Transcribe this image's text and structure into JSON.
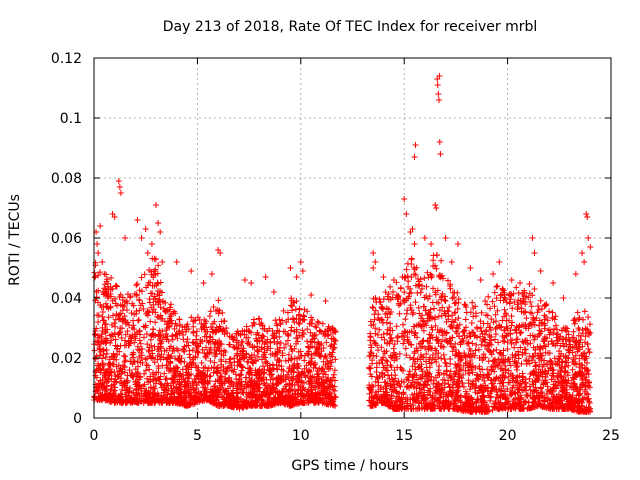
{
  "chart_data": {
    "type": "scatter",
    "title": "Day 213 of 2018, Rate Of TEC Index for receiver mrbl",
    "xlabel": "GPS time / hours",
    "ylabel": "ROTI / TECUs",
    "xlim": [
      0,
      25
    ],
    "ylim": [
      0,
      0.12
    ],
    "x_ticks": [
      0,
      5,
      10,
      15,
      20,
      25
    ],
    "x_tick_labels": [
      "0",
      "5",
      "10",
      "15",
      "20",
      "25"
    ],
    "y_ticks": [
      0,
      0.02,
      0.04,
      0.06,
      0.08,
      0.1,
      0.12
    ],
    "y_tick_labels": [
      "0",
      "0.02",
      "0.04",
      "0.06",
      "0.08",
      "0.1",
      "0.12"
    ],
    "grid": true,
    "marker": "+",
    "color": "#ff0000",
    "gap_hours": [
      11.7,
      13.3
    ],
    "series": [
      {
        "name": "ROTI",
        "points": [
          [
            0.1,
            0.062
          ],
          [
            0.15,
            0.058
          ],
          [
            0.2,
            0.055
          ],
          [
            0.3,
            0.064
          ],
          [
            0.4,
            0.052
          ],
          [
            0.5,
            0.048
          ],
          [
            0.9,
            0.068
          ],
          [
            1.0,
            0.067
          ],
          [
            1.2,
            0.079
          ],
          [
            1.25,
            0.077
          ],
          [
            1.3,
            0.075
          ],
          [
            1.5,
            0.06
          ],
          [
            2.1,
            0.066
          ],
          [
            2.3,
            0.06
          ],
          [
            2.5,
            0.063
          ],
          [
            2.6,
            0.055
          ],
          [
            2.8,
            0.058
          ],
          [
            3.0,
            0.071
          ],
          [
            3.1,
            0.065
          ],
          [
            3.2,
            0.062
          ],
          [
            3.3,
            0.052
          ],
          [
            4.0,
            0.052
          ],
          [
            4.7,
            0.049
          ],
          [
            5.3,
            0.045
          ],
          [
            5.7,
            0.048
          ],
          [
            6.0,
            0.056
          ],
          [
            6.1,
            0.055
          ],
          [
            7.3,
            0.046
          ],
          [
            7.6,
            0.045
          ],
          [
            8.3,
            0.047
          ],
          [
            8.7,
            0.042
          ],
          [
            9.5,
            0.05
          ],
          [
            9.8,
            0.047
          ],
          [
            10.0,
            0.052
          ],
          [
            10.1,
            0.049
          ],
          [
            10.5,
            0.041
          ],
          [
            11.2,
            0.039
          ],
          [
            13.5,
            0.055
          ],
          [
            13.6,
            0.052
          ],
          [
            13.5,
            0.05
          ],
          [
            14.0,
            0.047
          ],
          [
            14.5,
            0.046
          ],
          [
            15.0,
            0.073
          ],
          [
            15.1,
            0.068
          ],
          [
            15.3,
            0.062
          ],
          [
            15.4,
            0.063
          ],
          [
            15.5,
            0.058
          ],
          [
            15.5,
            0.087
          ],
          [
            15.55,
            0.091
          ],
          [
            16.0,
            0.06
          ],
          [
            16.3,
            0.058
          ],
          [
            16.5,
            0.071
          ],
          [
            16.55,
            0.07
          ],
          [
            16.6,
            0.113
          ],
          [
            16.62,
            0.111
          ],
          [
            16.65,
            0.108
          ],
          [
            16.68,
            0.106
          ],
          [
            16.7,
            0.114
          ],
          [
            16.72,
            0.092
          ],
          [
            16.75,
            0.088
          ],
          [
            17.0,
            0.06
          ],
          [
            17.3,
            0.052
          ],
          [
            17.6,
            0.058
          ],
          [
            18.2,
            0.05
          ],
          [
            18.7,
            0.046
          ],
          [
            19.3,
            0.048
          ],
          [
            19.6,
            0.052
          ],
          [
            20.2,
            0.046
          ],
          [
            20.6,
            0.045
          ],
          [
            21.2,
            0.06
          ],
          [
            21.3,
            0.055
          ],
          [
            21.6,
            0.049
          ],
          [
            22.2,
            0.045
          ],
          [
            22.7,
            0.04
          ],
          [
            23.3,
            0.048
          ],
          [
            23.6,
            0.055
          ],
          [
            23.7,
            0.052
          ],
          [
            23.8,
            0.068
          ],
          [
            23.85,
            0.067
          ],
          [
            23.9,
            0.06
          ],
          [
            24.0,
            0.057
          ]
        ],
        "envelope_hours": [
          0,
          0.5,
          1,
          1.5,
          2,
          2.5,
          3,
          3.5,
          4,
          4.5,
          5,
          5.5,
          6,
          6.5,
          7,
          7.5,
          8,
          8.5,
          9,
          9.5,
          10,
          10.5,
          11,
          11.7,
          13.3,
          13.5,
          14,
          14.5,
          15,
          15.5,
          16,
          16.5,
          17,
          17.5,
          18,
          18.5,
          19,
          19.5,
          20,
          20.5,
          21,
          21.5,
          22,
          22.5,
          23,
          23.5,
          24
        ],
        "envelope_low": [
          0.006,
          0.006,
          0.005,
          0.005,
          0.005,
          0.005,
          0.005,
          0.005,
          0.005,
          0.004,
          0.005,
          0.006,
          0.004,
          0.004,
          0.003,
          0.004,
          0.004,
          0.004,
          0.005,
          0.004,
          0.005,
          0.005,
          0.005,
          0.004,
          0.004,
          0.004,
          0.005,
          0.003,
          0.003,
          0.003,
          0.003,
          0.003,
          0.003,
          0.003,
          0.002,
          0.002,
          0.002,
          0.003,
          0.003,
          0.003,
          0.003,
          0.004,
          0.003,
          0.003,
          0.003,
          0.002,
          0.002
        ],
        "envelope_high": [
          0.055,
          0.05,
          0.045,
          0.04,
          0.045,
          0.05,
          0.055,
          0.042,
          0.035,
          0.033,
          0.035,
          0.037,
          0.04,
          0.028,
          0.03,
          0.032,
          0.035,
          0.03,
          0.035,
          0.04,
          0.04,
          0.035,
          0.032,
          0.03,
          0.03,
          0.04,
          0.042,
          0.045,
          0.05,
          0.055,
          0.048,
          0.06,
          0.048,
          0.042,
          0.04,
          0.038,
          0.04,
          0.045,
          0.042,
          0.044,
          0.045,
          0.042,
          0.038,
          0.032,
          0.03,
          0.038,
          0.035
        ]
      }
    ]
  }
}
